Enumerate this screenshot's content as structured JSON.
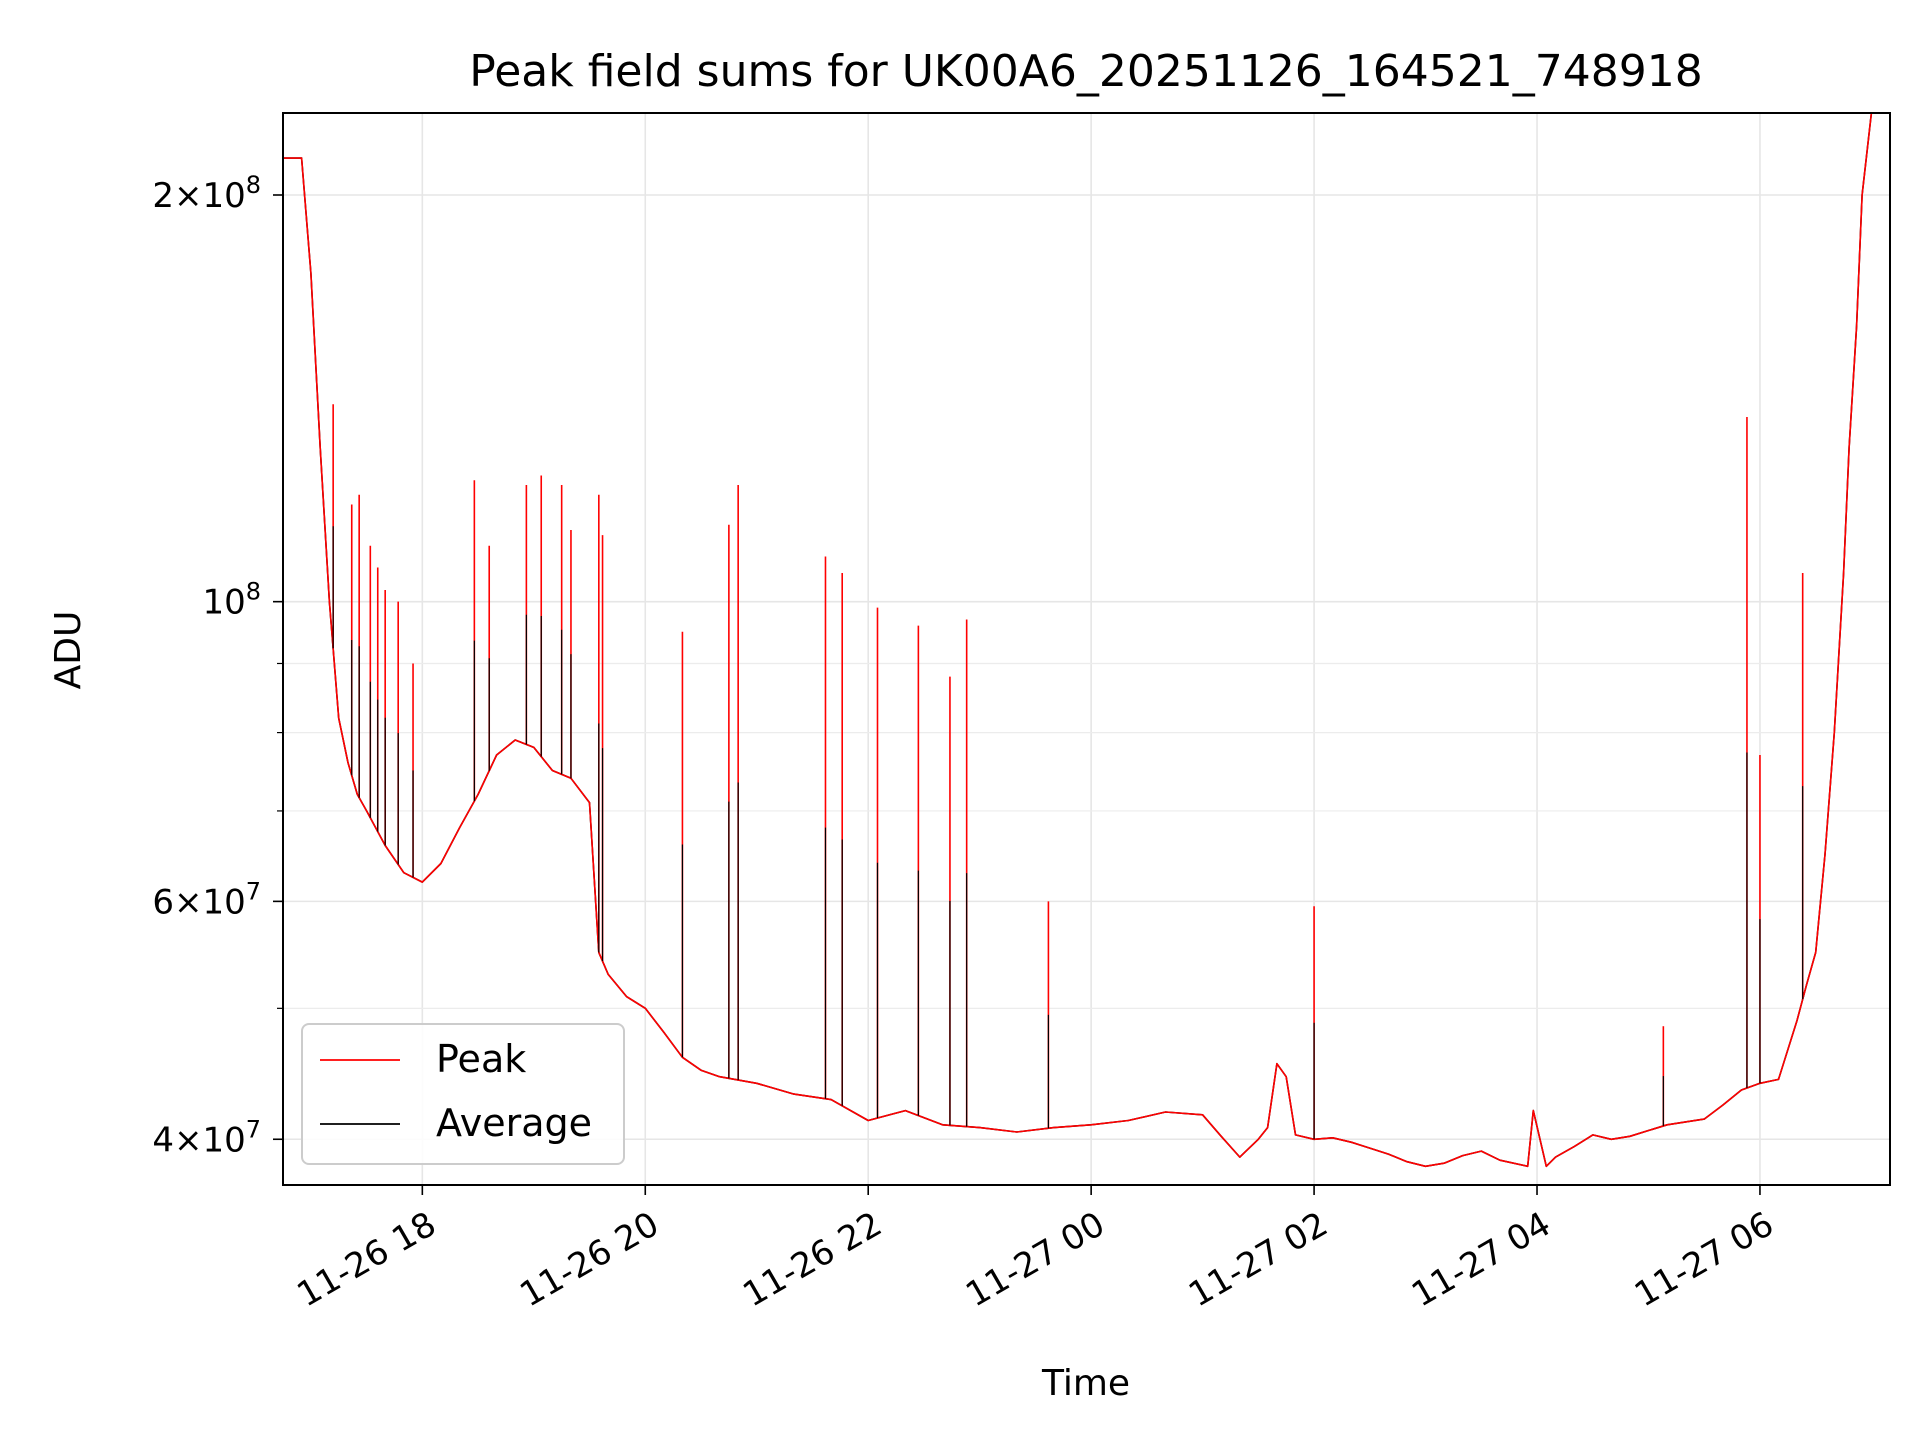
{
  "chart_data": {
    "type": "line",
    "title": "Peak field sums for UK00A6_20251126_164521_748918",
    "xlabel": "Time",
    "ylabel": "ADU",
    "yscale": "log",
    "xlim": [
      "2025-11-26 16:45",
      "2025-11-27 07:10"
    ],
    "ylim": [
      37000000,
      230000000
    ],
    "x_ticks": [
      {
        "value": "2025-11-26 18:00",
        "label": "11-26 18"
      },
      {
        "value": "2025-11-26 20:00",
        "label": "11-26 20"
      },
      {
        "value": "2025-11-26 22:00",
        "label": "11-26 22"
      },
      {
        "value": "2025-11-27 00:00",
        "label": "11-27 00"
      },
      {
        "value": "2025-11-27 02:00",
        "label": "11-27 02"
      },
      {
        "value": "2025-11-27 04:00",
        "label": "11-27 04"
      },
      {
        "value": "2025-11-27 06:00",
        "label": "11-27 06"
      }
    ],
    "y_ticks": [
      {
        "value": 40000000,
        "mantissa": "4",
        "exponent": "7"
      },
      {
        "value": 60000000,
        "mantissa": "6",
        "exponent": "7"
      },
      {
        "value": 100000000,
        "mantissa": "",
        "exponent": "8"
      },
      {
        "value": 200000000,
        "mantissa": "2",
        "exponent": "8"
      }
    ],
    "y_minor_ticks": [
      50000000,
      70000000,
      80000000,
      90000000
    ],
    "grid": true,
    "legend_position": "lower-left",
    "series": [
      {
        "name": "Average",
        "color": "#000000",
        "x": [
          "2025-11-26 16:45",
          "2025-11-26 16:55",
          "2025-11-26 17:00",
          "2025-11-26 17:05",
          "2025-11-26 17:10",
          "2025-11-26 17:15",
          "2025-11-26 17:20",
          "2025-11-26 17:25",
          "2025-11-26 17:30",
          "2025-11-26 17:40",
          "2025-11-26 17:50",
          "2025-11-26 18:00",
          "2025-11-26 18:10",
          "2025-11-26 18:20",
          "2025-11-26 18:30",
          "2025-11-26 18:40",
          "2025-11-26 18:50",
          "2025-11-26 19:00",
          "2025-11-26 19:10",
          "2025-11-26 19:20",
          "2025-11-26 19:30",
          "2025-11-26 19:35",
          "2025-11-26 19:40",
          "2025-11-26 19:50",
          "2025-11-26 20:00",
          "2025-11-26 20:10",
          "2025-11-26 20:20",
          "2025-11-26 20:30",
          "2025-11-26 20:40",
          "2025-11-26 21:00",
          "2025-11-26 21:20",
          "2025-11-26 21:40",
          "2025-11-26 22:00",
          "2025-11-26 22:20",
          "2025-11-26 22:40",
          "2025-11-26 23:00",
          "2025-11-26 23:20",
          "2025-11-26 23:40",
          "2025-11-27 00:00",
          "2025-11-27 00:20",
          "2025-11-27 00:40",
          "2025-11-27 01:00",
          "2025-11-27 01:10",
          "2025-11-27 01:20",
          "2025-11-27 01:30",
          "2025-11-27 01:35",
          "2025-11-27 01:40",
          "2025-11-27 01:45",
          "2025-11-27 01:50",
          "2025-11-27 02:00",
          "2025-11-27 02:10",
          "2025-11-27 02:20",
          "2025-11-27 02:30",
          "2025-11-27 02:40",
          "2025-11-27 02:50",
          "2025-11-27 03:00",
          "2025-11-27 03:10",
          "2025-11-27 03:20",
          "2025-11-27 03:30",
          "2025-11-27 03:40",
          "2025-11-27 03:55",
          "2025-11-27 03:58",
          "2025-11-27 04:05",
          "2025-11-27 04:10",
          "2025-11-27 04:20",
          "2025-11-27 04:30",
          "2025-11-27 04:40",
          "2025-11-27 04:50",
          "2025-11-27 05:00",
          "2025-11-27 05:10",
          "2025-11-27 05:20",
          "2025-11-27 05:30",
          "2025-11-27 05:40",
          "2025-11-27 05:50",
          "2025-11-27 06:00",
          "2025-11-27 06:10",
          "2025-11-27 06:20",
          "2025-11-27 06:25",
          "2025-11-27 06:30",
          "2025-11-27 06:35",
          "2025-11-27 06:40",
          "2025-11-27 06:45",
          "2025-11-27 06:48",
          "2025-11-27 06:52",
          "2025-11-27 06:55",
          "2025-11-27 07:00",
          "2025-11-27 07:10"
        ],
        "y": [
          213000000,
          213000000,
          175000000,
          130000000,
          100000000,
          82000000,
          76000000,
          72000000,
          70000000,
          66000000,
          63000000,
          62000000,
          64000000,
          68000000,
          72000000,
          77000000,
          79000000,
          78000000,
          75000000,
          74000000,
          71000000,
          55000000,
          53000000,
          51000000,
          50000000,
          48000000,
          46000000,
          45000000,
          44500000,
          44000000,
          43200000,
          42800000,
          41300000,
          42000000,
          41000000,
          40800000,
          40500000,
          40800000,
          41000000,
          41300000,
          41900000,
          41700000,
          40200000,
          38800000,
          40000000,
          40800000,
          45500000,
          44500000,
          40300000,
          40000000,
          40100000,
          39800000,
          39400000,
          39000000,
          38500000,
          38200000,
          38400000,
          38900000,
          39200000,
          38600000,
          38200000,
          42000000,
          38200000,
          38800000,
          39500000,
          40300000,
          40000000,
          40200000,
          40600000,
          41000000,
          41200000,
          41400000,
          42400000,
          43500000,
          44000000,
          44300000,
          49000000,
          52000000,
          55000000,
          65000000,
          80000000,
          105000000,
          130000000,
          160000000,
          200000000,
          230000000,
          230000000
        ]
      },
      {
        "name": "Peak",
        "color": "#ff0000",
        "spikes": [
          {
            "x": "2025-11-26 17:12",
            "y": 140000000
          },
          {
            "x": "2025-11-26 17:22",
            "y": 118000000
          },
          {
            "x": "2025-11-26 17:26",
            "y": 120000000
          },
          {
            "x": "2025-11-26 17:32",
            "y": 110000000
          },
          {
            "x": "2025-11-26 17:36",
            "y": 106000000
          },
          {
            "x": "2025-11-26 17:40",
            "y": 102000000
          },
          {
            "x": "2025-11-26 17:47",
            "y": 100000000
          },
          {
            "x": "2025-11-26 17:55",
            "y": 90000000
          },
          {
            "x": "2025-11-26 18:28",
            "y": 123000000
          },
          {
            "x": "2025-11-26 18:36",
            "y": 110000000
          },
          {
            "x": "2025-11-26 18:56",
            "y": 122000000
          },
          {
            "x": "2025-11-26 19:04",
            "y": 124000000
          },
          {
            "x": "2025-11-26 19:15",
            "y": 122000000
          },
          {
            "x": "2025-11-26 19:20",
            "y": 113000000
          },
          {
            "x": "2025-11-26 19:35",
            "y": 120000000
          },
          {
            "x": "2025-11-26 19:37",
            "y": 112000000
          },
          {
            "x": "2025-11-26 20:20",
            "y": 95000000
          },
          {
            "x": "2025-11-26 20:45",
            "y": 114000000
          },
          {
            "x": "2025-11-26 20:50",
            "y": 122000000
          },
          {
            "x": "2025-11-26 21:37",
            "y": 108000000
          },
          {
            "x": "2025-11-26 21:46",
            "y": 105000000
          },
          {
            "x": "2025-11-26 22:05",
            "y": 99000000
          },
          {
            "x": "2025-11-26 22:27",
            "y": 96000000
          },
          {
            "x": "2025-11-26 22:44",
            "y": 88000000
          },
          {
            "x": "2025-11-26 22:53",
            "y": 97000000
          },
          {
            "x": "2025-11-26 23:37",
            "y": 60000000
          },
          {
            "x": "2025-11-27 02:00",
            "y": 59500000
          },
          {
            "x": "2025-11-27 05:08",
            "y": 48500000
          },
          {
            "x": "2025-11-27 05:53",
            "y": 137000000
          },
          {
            "x": "2025-11-27 06:00",
            "y": 77000000
          },
          {
            "x": "2025-11-27 06:23",
            "y": 105000000
          }
        ]
      }
    ]
  }
}
